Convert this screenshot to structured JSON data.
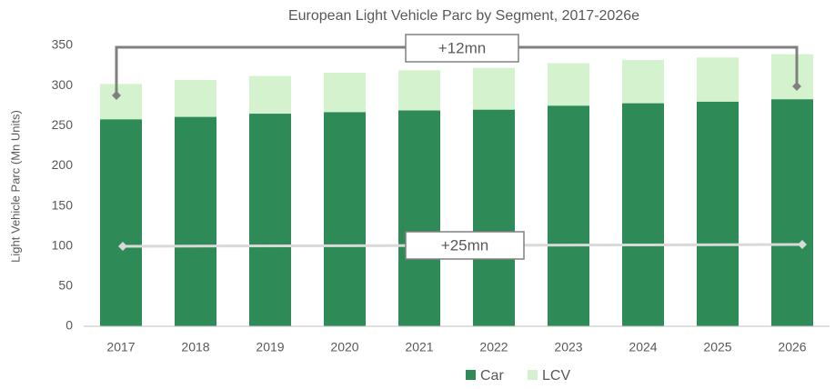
{
  "chart_data": {
    "type": "stacked_bar",
    "title": "European Light Vehicle Parc by Segment, 2017-2026e",
    "y_label": "Light Vehicle Parc (Mn Units)",
    "categories": [
      "2017",
      "2018",
      "2019",
      "2020",
      "2021",
      "2022",
      "2023",
      "2024",
      "2025",
      "2026"
    ],
    "series": [
      {
        "name": "Car",
        "color": "#2e8b57",
        "values": [
          258,
          261,
          265,
          267,
          269,
          270,
          275,
          278,
          280,
          283
        ]
      },
      {
        "name": "LCV",
        "color": "#d5f2cf",
        "values": [
          44,
          46,
          47,
          49,
          50,
          52,
          53,
          54,
          55,
          56
        ]
      }
    ],
    "annotations": [
      "+12mn",
      "+25mn"
    ],
    "ylim": [
      0,
      350
    ],
    "yticks": [
      0,
      50,
      100,
      150,
      200,
      250,
      300,
      350
    ],
    "grid": false,
    "legend": "bottom"
  }
}
